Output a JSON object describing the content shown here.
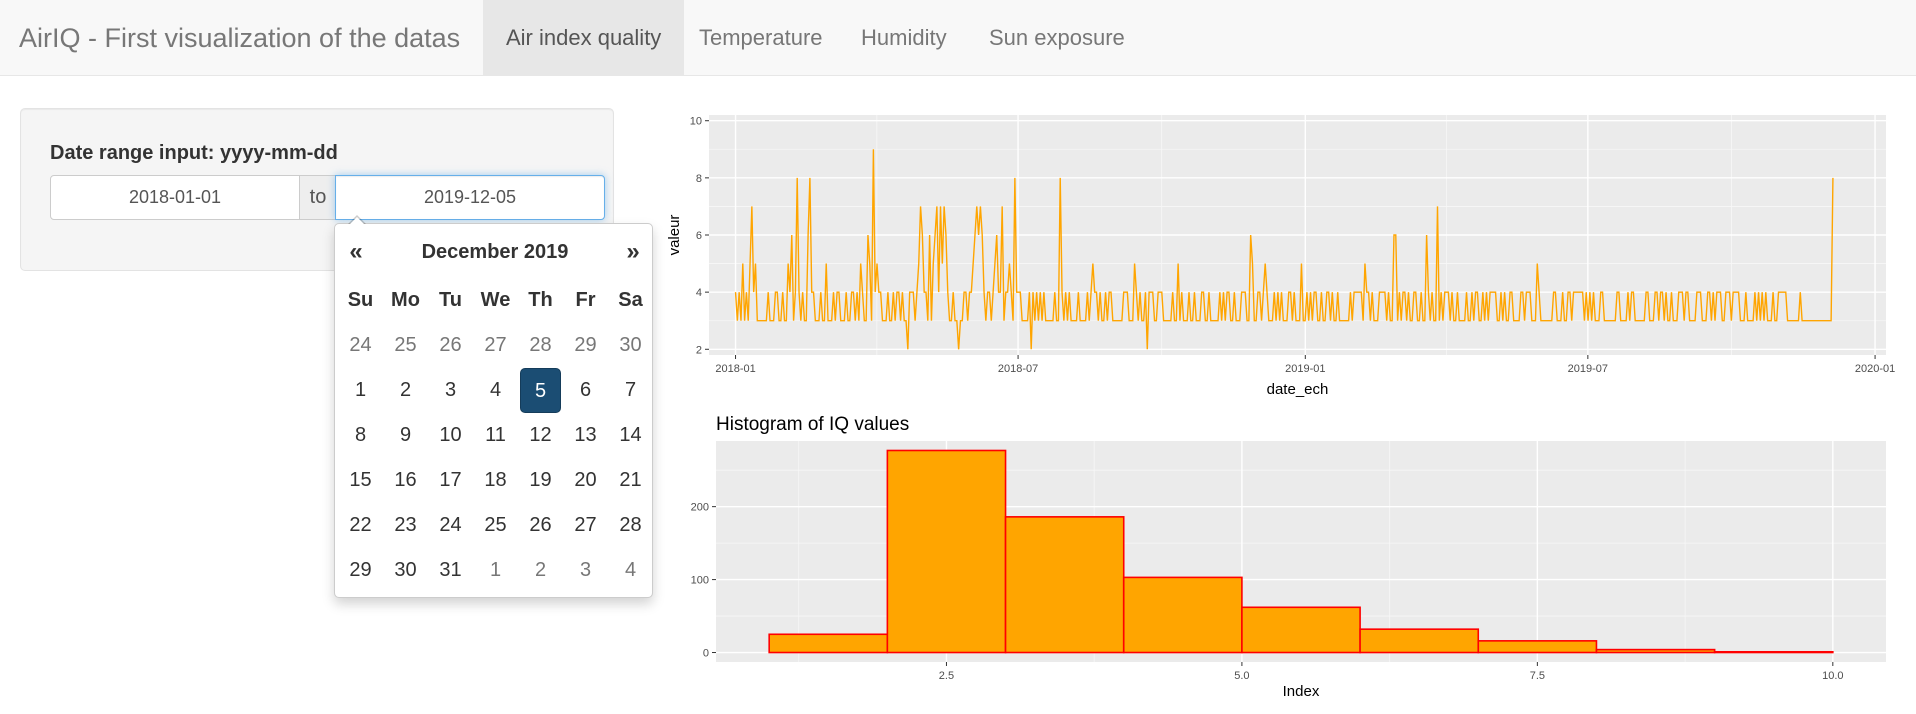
{
  "navbar": {
    "brand": "AirIQ - First visualization of the datas",
    "tabs": [
      {
        "label": "Air index quality",
        "active": true
      },
      {
        "label": "Temperature",
        "active": false
      },
      {
        "label": "Humidity",
        "active": false
      },
      {
        "label": "Sun exposure",
        "active": false
      }
    ]
  },
  "sidebar": {
    "label": "Date range input: yyyy-mm-dd",
    "start": "2018-01-01",
    "separator": "to",
    "end": "2019-12-05"
  },
  "datepicker": {
    "prev": "«",
    "next": "»",
    "title": "December 2019",
    "weekdays": [
      "Su",
      "Mo",
      "Tu",
      "We",
      "Th",
      "Fr",
      "Sa"
    ],
    "weeks": [
      [
        "24",
        "25",
        "26",
        "27",
        "28",
        "29",
        "30"
      ],
      [
        "1",
        "2",
        "3",
        "4",
        "5",
        "6",
        "7"
      ],
      [
        "8",
        "9",
        "10",
        "11",
        "12",
        "13",
        "14"
      ],
      [
        "15",
        "16",
        "17",
        "18",
        "19",
        "20",
        "21"
      ],
      [
        "22",
        "23",
        "24",
        "25",
        "26",
        "27",
        "28"
      ],
      [
        "29",
        "30",
        "31",
        "1",
        "2",
        "3",
        "4"
      ]
    ],
    "selected": "5",
    "colors": {
      "selected": "#1b4d73"
    }
  },
  "chart_data": [
    {
      "type": "line",
      "xlabel": "date_ech",
      "ylabel": "valeur",
      "x_ticks": [
        "2018-01",
        "2018-07",
        "2019-01",
        "2019-07",
        "2020-01"
      ],
      "x_range": [
        "2017-12-15",
        "2020-01-08"
      ],
      "y_ticks": [
        2,
        4,
        6,
        8,
        10
      ],
      "ylim": [
        1.8,
        10.2
      ],
      "grid": true,
      "color": "#ffa500",
      "series": [
        {
          "start": "2018-01-01",
          "end": "2019-12-05",
          "values": [
            4,
            3,
            4,
            3,
            5,
            3,
            4,
            3,
            5,
            7,
            4,
            5,
            3,
            3,
            3,
            3,
            3,
            3,
            4,
            3,
            3,
            3,
            4,
            4,
            3,
            3,
            4,
            3,
            3,
            5,
            4,
            6,
            3,
            4,
            8,
            4,
            3,
            4,
            3,
            3,
            6,
            8,
            4,
            4,
            3,
            3,
            3,
            4,
            3,
            3,
            5,
            3,
            3,
            3,
            4,
            3,
            4,
            4,
            3,
            3,
            3,
            4,
            3,
            3,
            4,
            4,
            3,
            4,
            3,
            5,
            4,
            3,
            3,
            6,
            5,
            3,
            9,
            4,
            5,
            4,
            4,
            3,
            3,
            3,
            4,
            3,
            3,
            4,
            3,
            4,
            4,
            3,
            4,
            3,
            3,
            2,
            4,
            4,
            4,
            3,
            4,
            5,
            7,
            6,
            4,
            4,
            3,
            6,
            3,
            5,
            6,
            7,
            4,
            7,
            5,
            7,
            6,
            4,
            3,
            3,
            4,
            3,
            3,
            2,
            3,
            3,
            4,
            4,
            3,
            4,
            4,
            5,
            6,
            7,
            6,
            7,
            6,
            4,
            3,
            4,
            4,
            3,
            4,
            5,
            6,
            4,
            4,
            7,
            3,
            4,
            4,
            5,
            4,
            3,
            8,
            4,
            4,
            4,
            3,
            3,
            3,
            3,
            4,
            2,
            4,
            3,
            4,
            3,
            4,
            3,
            4,
            3,
            3,
            3,
            3,
            3,
            4,
            3,
            3,
            8,
            4,
            3,
            4,
            3,
            4,
            3,
            3,
            3,
            3,
            4,
            3,
            3,
            3,
            3,
            4,
            3,
            4,
            5,
            4,
            4,
            3,
            4,
            3,
            3,
            4,
            3,
            4,
            4,
            3,
            3,
            3,
            3,
            3,
            3,
            4,
            4,
            4,
            3,
            3,
            3,
            5,
            4,
            3,
            4,
            3,
            3,
            4,
            2,
            4,
            4,
            4,
            3,
            3,
            4,
            4,
            4,
            3,
            3,
            3,
            3,
            3,
            4,
            3,
            3,
            5,
            3,
            4,
            3,
            3,
            3,
            4,
            3,
            3,
            4,
            3,
            3,
            3,
            4,
            4,
            3,
            3,
            4,
            3,
            3,
            3,
            3,
            3,
            4,
            3,
            4,
            3,
            4,
            4,
            3,
            3,
            4,
            3,
            3,
            3,
            4,
            4,
            4,
            3,
            3,
            6,
            5,
            3,
            3,
            4,
            4,
            3,
            4,
            5,
            4,
            3,
            3,
            3,
            4,
            3,
            4,
            3,
            4,
            3,
            3,
            3,
            4,
            4,
            3,
            4,
            3,
            3,
            3,
            5,
            3,
            3,
            4,
            3,
            4,
            3,
            4,
            4,
            3,
            3,
            4,
            3,
            3,
            4,
            4,
            3,
            4,
            3,
            3,
            4,
            3,
            3,
            3,
            3,
            3,
            3,
            4,
            3,
            4,
            4,
            4,
            4,
            4,
            3,
            5,
            4,
            4,
            3,
            4,
            3,
            3,
            3,
            4,
            4,
            4,
            4,
            3,
            4,
            3,
            3,
            6,
            6,
            3,
            4,
            3,
            4,
            4,
            3,
            4,
            3,
            3,
            4,
            4,
            3,
            3,
            4,
            3,
            3,
            6,
            4,
            3,
            4,
            3,
            3,
            7,
            3,
            4,
            3,
            4,
            4,
            4,
            3,
            4,
            3,
            3,
            4,
            3,
            3,
            3,
            3,
            4,
            3,
            3,
            4,
            3,
            4,
            4,
            3,
            3,
            4,
            3,
            4,
            3,
            4,
            4,
            4,
            4,
            3,
            3,
            4,
            3,
            4,
            3,
            3,
            4,
            4,
            3,
            3,
            3,
            3,
            4,
            4,
            3,
            4,
            4,
            4,
            3,
            3,
            3,
            5,
            4,
            3,
            3,
            3,
            3,
            3,
            3,
            3,
            4,
            4,
            3,
            3,
            3,
            4,
            3,
            3,
            4,
            4,
            3,
            4,
            4,
            4,
            4,
            4,
            4,
            3,
            4,
            3,
            4,
            3,
            4,
            3,
            3,
            3,
            4,
            4,
            3,
            3,
            3,
            3,
            3,
            3,
            3,
            4,
            4,
            3,
            3,
            3,
            3,
            4,
            3,
            4,
            4,
            3,
            3,
            3,
            3,
            3,
            3,
            4,
            4,
            3,
            3,
            3,
            4,
            4,
            3,
            4,
            4,
            3,
            4,
            3,
            3,
            4,
            3,
            3,
            3,
            4,
            4,
            4,
            3,
            4,
            4,
            3,
            3,
            3,
            3,
            4,
            4,
            4,
            3,
            3,
            3,
            4,
            4,
            3,
            4,
            3,
            4,
            4,
            4,
            3,
            3,
            4,
            4,
            4,
            3,
            4,
            4,
            4,
            4,
            3,
            3,
            3,
            4,
            3,
            3,
            3,
            3,
            4,
            3,
            4,
            3,
            4,
            3,
            4,
            3,
            3,
            3,
            4,
            3,
            3,
            4,
            4,
            4,
            4,
            4,
            3,
            3,
            3,
            3,
            3,
            3,
            3,
            4,
            3,
            3,
            3,
            3,
            3,
            3,
            3,
            3,
            3,
            3,
            3,
            3,
            3,
            3,
            3,
            3,
            3,
            8
          ]
        }
      ]
    },
    {
      "type": "bar",
      "title": "Histogram of IQ values",
      "xlabel": "Index",
      "x_ticks": [
        2.5,
        5.0,
        7.5,
        10.0
      ],
      "x_range": [
        0.55,
        10.45
      ],
      "y_ticks": [
        0,
        100,
        200
      ],
      "ylim": [
        -13,
        290
      ],
      "grid": true,
      "fill": "#ffa500",
      "stroke": "#ff0000",
      "bins": [
        {
          "from": 1,
          "to": 2,
          "count": 25
        },
        {
          "from": 2,
          "to": 3,
          "count": 277
        },
        {
          "from": 3,
          "to": 4,
          "count": 186
        },
        {
          "from": 4,
          "to": 5,
          "count": 103
        },
        {
          "from": 5,
          "to": 6,
          "count": 62
        },
        {
          "from": 6,
          "to": 7,
          "count": 32
        },
        {
          "from": 7,
          "to": 8,
          "count": 16
        },
        {
          "from": 8,
          "to": 9,
          "count": 4
        },
        {
          "from": 9,
          "to": 10,
          "count": 1
        }
      ]
    }
  ]
}
